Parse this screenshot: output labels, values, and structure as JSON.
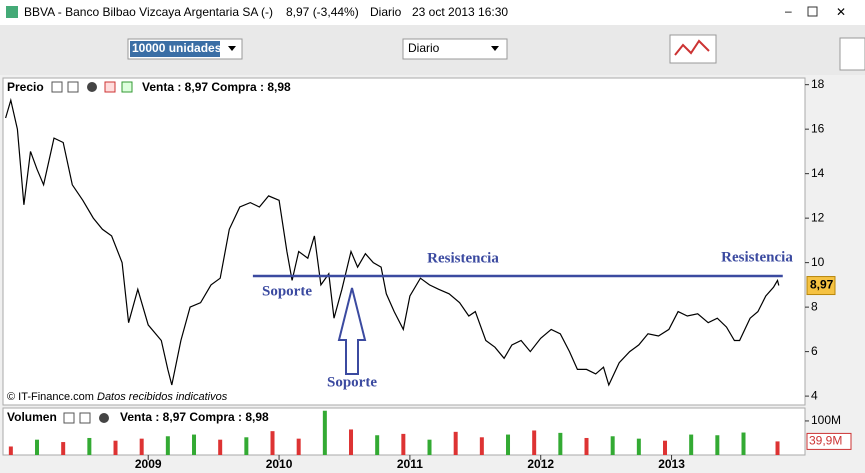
{
  "window": {
    "title": "BBVA - Banco Bilbao Vizcaya Argentaria SA (-)",
    "quote": "8,97 (-3,44%)",
    "period": "Diario",
    "datetime": "23 oct 2013 16:30"
  },
  "toolbar": {
    "quantity": "10000 unidades",
    "period": "Diario"
  },
  "chart_data": [
    {
      "type": "line",
      "title": "Precio",
      "quote_info": "Venta : 8,97 Compra : 8,98",
      "source": "© IT-Finance.com",
      "note": "Datos recibidos indicativos",
      "xlim": [
        2007.89,
        2014.02
      ],
      "xticks": [
        2009,
        2010,
        2011,
        2012,
        2013
      ],
      "ylim": [
        3.6,
        18.3
      ],
      "yticks": [
        4,
        6,
        8,
        10,
        12,
        14,
        16,
        18
      ],
      "grid": false,
      "series": [
        {
          "name": "BBVA",
          "color": "#000000",
          "x": [
            2007.91,
            2007.95,
            2008.0,
            2008.05,
            2008.1,
            2008.15,
            2008.2,
            2008.28,
            2008.35,
            2008.42,
            2008.5,
            2008.58,
            2008.65,
            2008.72,
            2008.8,
            2008.85,
            2008.92,
            2009.0,
            2009.1,
            2009.15,
            2009.18,
            2009.25,
            2009.32,
            2009.4,
            2009.48,
            2009.55,
            2009.62,
            2009.7,
            2009.78,
            2009.85,
            2009.92,
            2010.0,
            2010.06,
            2010.1,
            2010.15,
            2010.22,
            2010.27,
            2010.32,
            2010.38,
            2010.42,
            2010.48,
            2010.55,
            2010.6,
            2010.66,
            2010.72,
            2010.78,
            2010.82,
            2010.88,
            2010.95,
            2011.0,
            2011.08,
            2011.15,
            2011.22,
            2011.3,
            2011.38,
            2011.45,
            2011.5,
            2011.58,
            2011.65,
            2011.72,
            2011.78,
            2011.85,
            2011.92,
            2012.0,
            2012.08,
            2012.15,
            2012.22,
            2012.28,
            2012.35,
            2012.42,
            2012.48,
            2012.52,
            2012.6,
            2012.68,
            2012.75,
            2012.82,
            2012.9,
            2012.98,
            2013.05,
            2013.12,
            2013.2,
            2013.28,
            2013.35,
            2013.42,
            2013.48,
            2013.52,
            2013.6,
            2013.66,
            2013.72,
            2013.78,
            2013.81,
            2013.82
          ],
          "values": [
            16.5,
            17.3,
            16.0,
            12.6,
            15.0,
            14.2,
            13.5,
            15.6,
            15.4,
            13.5,
            12.8,
            12.0,
            11.5,
            11.2,
            10.0,
            7.3,
            8.8,
            7.2,
            6.5,
            5.2,
            4.5,
            6.5,
            8.0,
            8.2,
            9.0,
            9.3,
            11.5,
            12.5,
            12.7,
            12.5,
            13.0,
            12.8,
            10.5,
            9.2,
            10.5,
            10.2,
            11.2,
            9.0,
            9.5,
            7.5,
            8.8,
            10.5,
            9.8,
            10.4,
            10.0,
            9.8,
            8.6,
            7.8,
            7.0,
            8.5,
            9.3,
            9.0,
            8.8,
            8.6,
            8.2,
            7.6,
            7.8,
            6.5,
            6.2,
            5.7,
            6.3,
            6.5,
            6.0,
            6.6,
            7.0,
            6.8,
            6.0,
            5.2,
            5.2,
            5.0,
            5.3,
            4.5,
            5.5,
            6.0,
            6.3,
            6.8,
            6.7,
            7.0,
            7.8,
            7.6,
            7.7,
            7.3,
            7.5,
            7.1,
            6.5,
            6.5,
            7.5,
            7.8,
            8.5,
            8.9,
            9.2,
            8.97
          ]
        }
      ],
      "reference_line": {
        "value": 9.4,
        "x": [
          2009.8,
          2013.85
        ],
        "color": "#3b4aa0"
      },
      "annotations": [
        "Resistencia",
        "Soporte",
        "Soporte",
        "Resistencia"
      ],
      "last": {
        "value": 8.97,
        "label": "8,97"
      }
    },
    {
      "type": "bar",
      "title": "Volumen",
      "quote_info": "Venta : 8,97 Compra : 8,98",
      "xlim": [
        2007.89,
        2014.02
      ],
      "ylim": [
        0,
        138
      ],
      "yticks": [
        {
          "value": 100,
          "label": "100M"
        }
      ],
      "x": [
        2007.95,
        2008.15,
        2008.35,
        2008.55,
        2008.75,
        2008.95,
        2009.15,
        2009.35,
        2009.55,
        2009.75,
        2009.95,
        2010.15,
        2010.35,
        2010.55,
        2010.75,
        2010.95,
        2011.15,
        2011.35,
        2011.55,
        2011.75,
        2011.95,
        2012.15,
        2012.35,
        2012.55,
        2012.75,
        2012.95,
        2013.15,
        2013.35,
        2013.55,
        2013.81
      ],
      "values": [
        25,
        45,
        38,
        50,
        42,
        48,
        55,
        60,
        45,
        52,
        70,
        48,
        130,
        75,
        58,
        62,
        45,
        68,
        52,
        60,
        72,
        65,
        50,
        55,
        48,
        42,
        60,
        58,
        66,
        39.9
      ],
      "colors": [
        "#d33",
        "#3a3",
        "#d33",
        "#3a3",
        "#d33",
        "#d33",
        "#3a3",
        "#3a3",
        "#d33",
        "#3a3",
        "#d33",
        "#d33",
        "#3a3",
        "#d33",
        "#3a3",
        "#d33",
        "#3a3",
        "#d33",
        "#d33",
        "#3a3",
        "#d33",
        "#3a3",
        "#d33",
        "#3a3",
        "#3a3",
        "#d33",
        "#3a3",
        "#3a3",
        "#3a3",
        "#d33"
      ],
      "last": {
        "value": 39.9,
        "label": "39,9M"
      }
    }
  ]
}
